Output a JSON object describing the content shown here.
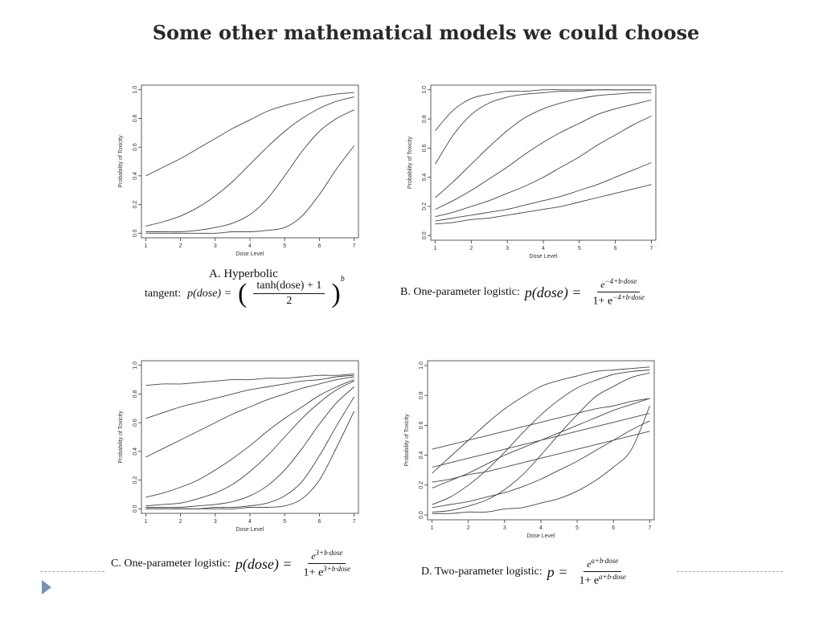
{
  "slide": {
    "title": "Some other mathematical models we could choose"
  },
  "chart_data": [
    {
      "type": "line",
      "panel_label": "A. Hyperbolic",
      "formula_lead": "tangent:",
      "formula_lhs": "p(dose) =",
      "formula_num": "tanh(dose) + 1",
      "formula_den": "2",
      "formula_exp": "b",
      "xlabel": "Dose Level",
      "ylabel": "Probability of Toxicity",
      "xlim": [
        1,
        7
      ],
      "ylim": [
        0,
        1
      ],
      "xticks": [
        "1",
        "2",
        "3",
        "4",
        "5",
        "6",
        "7"
      ],
      "yticks": [
        "0.0",
        "0.2",
        "0.4",
        "0.6",
        "0.8",
        "1.0"
      ],
      "x": [
        1,
        1.5,
        2,
        2.5,
        3,
        3.5,
        4,
        4.5,
        5,
        5.5,
        6,
        6.5,
        7
      ],
      "series": [
        {
          "values": [
            0.4,
            0.46,
            0.52,
            0.59,
            0.66,
            0.73,
            0.79,
            0.85,
            0.89,
            0.92,
            0.95,
            0.97,
            0.98
          ]
        },
        {
          "values": [
            0.05,
            0.08,
            0.12,
            0.18,
            0.26,
            0.36,
            0.48,
            0.6,
            0.71,
            0.8,
            0.87,
            0.92,
            0.95
          ]
        },
        {
          "values": [
            0.01,
            0.01,
            0.01,
            0.02,
            0.04,
            0.07,
            0.13,
            0.24,
            0.4,
            0.57,
            0.71,
            0.8,
            0.86
          ]
        },
        {
          "values": [
            0.0,
            0.0,
            0.0,
            0.0,
            0.0,
            0.01,
            0.01,
            0.02,
            0.04,
            0.12,
            0.27,
            0.45,
            0.61
          ]
        }
      ]
    },
    {
      "type": "line",
      "panel_label": "B. One-parameter logistic:",
      "formula_lhs": "p(dose) =",
      "formula_num_base": "e",
      "formula_num_exp": "−4+b·dose",
      "formula_den_lead": "1+ e",
      "formula_den_exp": "−4+b·dose",
      "xlabel": "Dose Level",
      "ylabel": "Probability of Toxicity",
      "xlim": [
        1,
        7
      ],
      "ylim": [
        0,
        1
      ],
      "xticks": [
        "1",
        "2",
        "3",
        "4",
        "5",
        "6",
        "7"
      ],
      "yticks": [
        "0.0",
        "0.2",
        "0.4",
        "0.6",
        "0.8",
        "1.0"
      ],
      "x": [
        1,
        1.5,
        2,
        2.5,
        3,
        3.5,
        4,
        4.5,
        5,
        5.5,
        6,
        6.5,
        7
      ],
      "series": [
        {
          "values": [
            0.72,
            0.86,
            0.94,
            0.97,
            0.99,
            0.99,
            1.0,
            1.0,
            1.0,
            1.0,
            1.0,
            1.0,
            1.0
          ]
        },
        {
          "values": [
            0.49,
            0.69,
            0.83,
            0.91,
            0.95,
            0.97,
            0.98,
            0.99,
            0.99,
            1.0,
            1.0,
            1.0,
            1.0
          ]
        },
        {
          "values": [
            0.26,
            0.37,
            0.49,
            0.61,
            0.72,
            0.81,
            0.87,
            0.91,
            0.94,
            0.96,
            0.97,
            0.98,
            0.98
          ]
        },
        {
          "values": [
            0.18,
            0.24,
            0.31,
            0.39,
            0.47,
            0.56,
            0.64,
            0.71,
            0.77,
            0.83,
            0.87,
            0.9,
            0.93
          ]
        },
        {
          "values": [
            0.13,
            0.16,
            0.2,
            0.24,
            0.29,
            0.34,
            0.4,
            0.47,
            0.54,
            0.62,
            0.69,
            0.76,
            0.82
          ]
        },
        {
          "values": [
            0.1,
            0.12,
            0.14,
            0.16,
            0.18,
            0.21,
            0.24,
            0.27,
            0.31,
            0.35,
            0.4,
            0.45,
            0.5
          ]
        },
        {
          "values": [
            0.08,
            0.09,
            0.11,
            0.12,
            0.14,
            0.16,
            0.18,
            0.2,
            0.23,
            0.26,
            0.29,
            0.32,
            0.35
          ]
        }
      ]
    },
    {
      "type": "line",
      "panel_label": "C. One-parameter logistic:",
      "formula_lhs": "p(dose) =",
      "formula_num_base": "e",
      "formula_num_exp": "3+b·dose",
      "formula_den_lead": "1+ e",
      "formula_den_exp": "3+b·dose",
      "xlabel": "Dose Level",
      "ylabel": "Probability of Toxicity",
      "xlim": [
        1,
        7
      ],
      "ylim": [
        0,
        1
      ],
      "xticks": [
        "1",
        "2",
        "3",
        "4",
        "5",
        "6",
        "7"
      ],
      "yticks": [
        "0.0",
        "0.2",
        "0.4",
        "0.6",
        "0.8",
        "1.0"
      ],
      "x": [
        1,
        1.5,
        2,
        2.5,
        3,
        3.5,
        4,
        4.5,
        5,
        5.5,
        6,
        6.5,
        7
      ],
      "series": [
        {
          "values": [
            0.86,
            0.87,
            0.87,
            0.88,
            0.89,
            0.9,
            0.9,
            0.91,
            0.91,
            0.92,
            0.93,
            0.93,
            0.94
          ]
        },
        {
          "values": [
            0.63,
            0.67,
            0.71,
            0.74,
            0.77,
            0.8,
            0.83,
            0.85,
            0.87,
            0.89,
            0.9,
            0.92,
            0.93
          ]
        },
        {
          "values": [
            0.36,
            0.42,
            0.48,
            0.54,
            0.6,
            0.66,
            0.71,
            0.76,
            0.8,
            0.84,
            0.87,
            0.9,
            0.92
          ]
        },
        {
          "values": [
            0.08,
            0.11,
            0.15,
            0.2,
            0.27,
            0.35,
            0.44,
            0.54,
            0.63,
            0.71,
            0.79,
            0.85,
            0.9
          ]
        },
        {
          "values": [
            0.02,
            0.03,
            0.04,
            0.07,
            0.11,
            0.17,
            0.26,
            0.37,
            0.5,
            0.63,
            0.74,
            0.83,
            0.89
          ]
        },
        {
          "values": [
            0.01,
            0.01,
            0.01,
            0.02,
            0.03,
            0.05,
            0.09,
            0.16,
            0.27,
            0.42,
            0.59,
            0.74,
            0.85
          ]
        },
        {
          "values": [
            0.0,
            0.0,
            0.0,
            0.0,
            0.01,
            0.01,
            0.02,
            0.04,
            0.09,
            0.19,
            0.37,
            0.58,
            0.78
          ]
        },
        {
          "values": [
            0.0,
            0.0,
            0.0,
            0.0,
            0.0,
            0.0,
            0.01,
            0.01,
            0.02,
            0.07,
            0.2,
            0.43,
            0.68
          ]
        }
      ]
    },
    {
      "type": "line",
      "panel_label": "D. Two-parameter logistic:",
      "formula_lhs": "p =",
      "formula_num_base": "e",
      "formula_num_exp": "a+b·dose",
      "formula_den_lead": "1+ e",
      "formula_den_exp": "a+b·dose",
      "xlabel": "Dose Level",
      "ylabel": "Probability of Toxicity",
      "xlim": [
        1,
        7
      ],
      "ylim": [
        0,
        1
      ],
      "xticks": [
        "1",
        "2",
        "3",
        "4",
        "5",
        "6",
        "7"
      ],
      "yticks": [
        "0.0",
        "0.2",
        "0.4",
        "0.6",
        "0.8",
        "1.0"
      ],
      "x": [
        1,
        1.5,
        2,
        2.5,
        3,
        3.5,
        4,
        4.5,
        5,
        5.5,
        6,
        6.5,
        7
      ],
      "series": [
        {
          "values": [
            0.28,
            0.39,
            0.5,
            0.61,
            0.71,
            0.79,
            0.86,
            0.9,
            0.93,
            0.96,
            0.97,
            0.98,
            0.99
          ]
        },
        {
          "values": [
            0.44,
            0.47,
            0.5,
            0.53,
            0.56,
            0.59,
            0.62,
            0.65,
            0.68,
            0.71,
            0.73,
            0.76,
            0.78
          ]
        },
        {
          "values": [
            0.07,
            0.12,
            0.2,
            0.3,
            0.42,
            0.55,
            0.67,
            0.77,
            0.85,
            0.9,
            0.94,
            0.96,
            0.97
          ]
        },
        {
          "values": [
            0.18,
            0.23,
            0.28,
            0.34,
            0.4,
            0.45,
            0.5,
            0.55,
            0.6,
            0.65,
            0.7,
            0.74,
            0.78
          ]
        },
        {
          "values": [
            0.32,
            0.35,
            0.38,
            0.41,
            0.44,
            0.47,
            0.5,
            0.53,
            0.56,
            0.59,
            0.62,
            0.65,
            0.68
          ]
        },
        {
          "values": [
            0.02,
            0.03,
            0.06,
            0.1,
            0.17,
            0.27,
            0.4,
            0.54,
            0.67,
            0.79,
            0.86,
            0.92,
            0.95
          ]
        },
        {
          "values": [
            0.22,
            0.24,
            0.27,
            0.29,
            0.32,
            0.35,
            0.38,
            0.41,
            0.44,
            0.47,
            0.5,
            0.53,
            0.56
          ]
        },
        {
          "values": [
            0.01,
            0.01,
            0.02,
            0.02,
            0.04,
            0.05,
            0.08,
            0.11,
            0.16,
            0.23,
            0.32,
            0.44,
            0.73
          ]
        },
        {
          "values": [
            0.05,
            0.07,
            0.09,
            0.12,
            0.15,
            0.19,
            0.24,
            0.3,
            0.36,
            0.43,
            0.5,
            0.57,
            0.63
          ]
        }
      ]
    }
  ]
}
